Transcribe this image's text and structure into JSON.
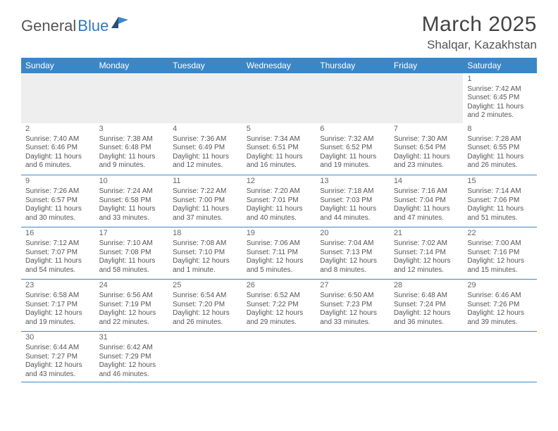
{
  "brand": {
    "part1": "General",
    "part2": "Blue"
  },
  "title": "March 2025",
  "location": "Shalqar, Kazakhstan",
  "colors": {
    "header_bg": "#3a87c8",
    "header_fg": "#ffffff",
    "divider": "#3a87c8",
    "blank_bg": "#eeeeee",
    "text": "#555555"
  },
  "weekdays": [
    "Sunday",
    "Monday",
    "Tuesday",
    "Wednesday",
    "Thursday",
    "Friday",
    "Saturday"
  ],
  "weeks": [
    [
      null,
      null,
      null,
      null,
      null,
      null,
      {
        "n": "1",
        "sr": "Sunrise: 7:42 AM",
        "ss": "Sunset: 6:45 PM",
        "dl": "Daylight: 11 hours and 2 minutes."
      }
    ],
    [
      {
        "n": "2",
        "sr": "Sunrise: 7:40 AM",
        "ss": "Sunset: 6:46 PM",
        "dl": "Daylight: 11 hours and 6 minutes."
      },
      {
        "n": "3",
        "sr": "Sunrise: 7:38 AM",
        "ss": "Sunset: 6:48 PM",
        "dl": "Daylight: 11 hours and 9 minutes."
      },
      {
        "n": "4",
        "sr": "Sunrise: 7:36 AM",
        "ss": "Sunset: 6:49 PM",
        "dl": "Daylight: 11 hours and 12 minutes."
      },
      {
        "n": "5",
        "sr": "Sunrise: 7:34 AM",
        "ss": "Sunset: 6:51 PM",
        "dl": "Daylight: 11 hours and 16 minutes."
      },
      {
        "n": "6",
        "sr": "Sunrise: 7:32 AM",
        "ss": "Sunset: 6:52 PM",
        "dl": "Daylight: 11 hours and 19 minutes."
      },
      {
        "n": "7",
        "sr": "Sunrise: 7:30 AM",
        "ss": "Sunset: 6:54 PM",
        "dl": "Daylight: 11 hours and 23 minutes."
      },
      {
        "n": "8",
        "sr": "Sunrise: 7:28 AM",
        "ss": "Sunset: 6:55 PM",
        "dl": "Daylight: 11 hours and 26 minutes."
      }
    ],
    [
      {
        "n": "9",
        "sr": "Sunrise: 7:26 AM",
        "ss": "Sunset: 6:57 PM",
        "dl": "Daylight: 11 hours and 30 minutes."
      },
      {
        "n": "10",
        "sr": "Sunrise: 7:24 AM",
        "ss": "Sunset: 6:58 PM",
        "dl": "Daylight: 11 hours and 33 minutes."
      },
      {
        "n": "11",
        "sr": "Sunrise: 7:22 AM",
        "ss": "Sunset: 7:00 PM",
        "dl": "Daylight: 11 hours and 37 minutes."
      },
      {
        "n": "12",
        "sr": "Sunrise: 7:20 AM",
        "ss": "Sunset: 7:01 PM",
        "dl": "Daylight: 11 hours and 40 minutes."
      },
      {
        "n": "13",
        "sr": "Sunrise: 7:18 AM",
        "ss": "Sunset: 7:03 PM",
        "dl": "Daylight: 11 hours and 44 minutes."
      },
      {
        "n": "14",
        "sr": "Sunrise: 7:16 AM",
        "ss": "Sunset: 7:04 PM",
        "dl": "Daylight: 11 hours and 47 minutes."
      },
      {
        "n": "15",
        "sr": "Sunrise: 7:14 AM",
        "ss": "Sunset: 7:06 PM",
        "dl": "Daylight: 11 hours and 51 minutes."
      }
    ],
    [
      {
        "n": "16",
        "sr": "Sunrise: 7:12 AM",
        "ss": "Sunset: 7:07 PM",
        "dl": "Daylight: 11 hours and 54 minutes."
      },
      {
        "n": "17",
        "sr": "Sunrise: 7:10 AM",
        "ss": "Sunset: 7:08 PM",
        "dl": "Daylight: 11 hours and 58 minutes."
      },
      {
        "n": "18",
        "sr": "Sunrise: 7:08 AM",
        "ss": "Sunset: 7:10 PM",
        "dl": "Daylight: 12 hours and 1 minute."
      },
      {
        "n": "19",
        "sr": "Sunrise: 7:06 AM",
        "ss": "Sunset: 7:11 PM",
        "dl": "Daylight: 12 hours and 5 minutes."
      },
      {
        "n": "20",
        "sr": "Sunrise: 7:04 AM",
        "ss": "Sunset: 7:13 PM",
        "dl": "Daylight: 12 hours and 8 minutes."
      },
      {
        "n": "21",
        "sr": "Sunrise: 7:02 AM",
        "ss": "Sunset: 7:14 PM",
        "dl": "Daylight: 12 hours and 12 minutes."
      },
      {
        "n": "22",
        "sr": "Sunrise: 7:00 AM",
        "ss": "Sunset: 7:16 PM",
        "dl": "Daylight: 12 hours and 15 minutes."
      }
    ],
    [
      {
        "n": "23",
        "sr": "Sunrise: 6:58 AM",
        "ss": "Sunset: 7:17 PM",
        "dl": "Daylight: 12 hours and 19 minutes."
      },
      {
        "n": "24",
        "sr": "Sunrise: 6:56 AM",
        "ss": "Sunset: 7:19 PM",
        "dl": "Daylight: 12 hours and 22 minutes."
      },
      {
        "n": "25",
        "sr": "Sunrise: 6:54 AM",
        "ss": "Sunset: 7:20 PM",
        "dl": "Daylight: 12 hours and 26 minutes."
      },
      {
        "n": "26",
        "sr": "Sunrise: 6:52 AM",
        "ss": "Sunset: 7:22 PM",
        "dl": "Daylight: 12 hours and 29 minutes."
      },
      {
        "n": "27",
        "sr": "Sunrise: 6:50 AM",
        "ss": "Sunset: 7:23 PM",
        "dl": "Daylight: 12 hours and 33 minutes."
      },
      {
        "n": "28",
        "sr": "Sunrise: 6:48 AM",
        "ss": "Sunset: 7:24 PM",
        "dl": "Daylight: 12 hours and 36 minutes."
      },
      {
        "n": "29",
        "sr": "Sunrise: 6:46 AM",
        "ss": "Sunset: 7:26 PM",
        "dl": "Daylight: 12 hours and 39 minutes."
      }
    ],
    [
      {
        "n": "30",
        "sr": "Sunrise: 6:44 AM",
        "ss": "Sunset: 7:27 PM",
        "dl": "Daylight: 12 hours and 43 minutes."
      },
      {
        "n": "31",
        "sr": "Sunrise: 6:42 AM",
        "ss": "Sunset: 7:29 PM",
        "dl": "Daylight: 12 hours and 46 minutes."
      },
      null,
      null,
      null,
      null,
      null
    ]
  ]
}
